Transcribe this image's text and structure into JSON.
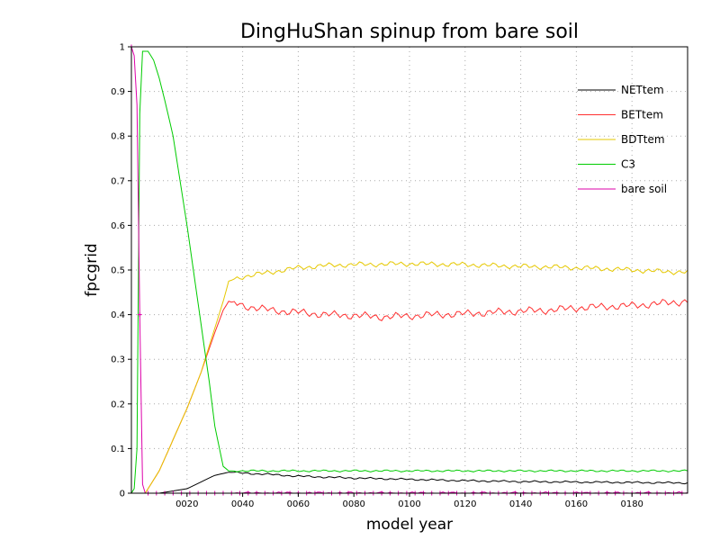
{
  "chart_data": {
    "type": "line",
    "title": "DingHuShan spinup from bare soil",
    "xlabel": "model year",
    "ylabel": "fpcgrid",
    "xlim": [
      0,
      200
    ],
    "ylim": [
      0,
      1
    ],
    "grid": true,
    "legend_position": "top-right",
    "x_ticks": [
      20,
      40,
      60,
      80,
      100,
      120,
      140,
      160,
      180
    ],
    "x_tick_labels": [
      "0020",
      "0040",
      "0060",
      "0080",
      "0100",
      "0120",
      "0140",
      "0160",
      "0180"
    ],
    "y_ticks": [
      0,
      0.1,
      0.2,
      0.3,
      0.4,
      0.5,
      0.6,
      0.7,
      0.8,
      0.9,
      1
    ],
    "y_tick_labels": [
      "0",
      "0.1",
      "0.2",
      "0.3",
      "0.4",
      "0.5",
      "0.6",
      "0.7",
      "0.8",
      "0.9",
      "1"
    ],
    "series": [
      {
        "name": "NETtem",
        "color": "#000000",
        "x": [
          0,
          10,
          15,
          20,
          25,
          30,
          35,
          40,
          50,
          60,
          80,
          100,
          120,
          140,
          160,
          180,
          200
        ],
        "values": [
          0,
          0,
          0.005,
          0.01,
          0.025,
          0.04,
          0.047,
          0.045,
          0.042,
          0.038,
          0.034,
          0.031,
          0.028,
          0.026,
          0.025,
          0.024,
          0.023
        ]
      },
      {
        "name": "BETtem",
        "color": "#ff3030",
        "x": [
          0,
          5,
          10,
          15,
          20,
          25,
          30,
          33,
          35,
          40,
          45,
          50,
          60,
          70,
          80,
          90,
          100,
          110,
          120,
          130,
          140,
          150,
          160,
          170,
          180,
          190,
          200
        ],
        "values": [
          0,
          0,
          0.05,
          0.12,
          0.19,
          0.27,
          0.36,
          0.41,
          0.43,
          0.42,
          0.415,
          0.41,
          0.405,
          0.4,
          0.398,
          0.395,
          0.397,
          0.4,
          0.402,
          0.405,
          0.408,
          0.41,
          0.415,
          0.418,
          0.42,
          0.425,
          0.43
        ]
      },
      {
        "name": "BDTtem",
        "color": "#e6c800",
        "x": [
          0,
          5,
          10,
          15,
          20,
          25,
          30,
          33,
          35,
          40,
          45,
          50,
          60,
          70,
          80,
          90,
          100,
          110,
          120,
          130,
          140,
          150,
          160,
          170,
          180,
          190,
          200
        ],
        "values": [
          0,
          0,
          0.05,
          0.12,
          0.19,
          0.27,
          0.37,
          0.43,
          0.475,
          0.485,
          0.49,
          0.495,
          0.505,
          0.51,
          0.512,
          0.513,
          0.514,
          0.513,
          0.512,
          0.51,
          0.508,
          0.507,
          0.505,
          0.503,
          0.5,
          0.497,
          0.495
        ]
      },
      {
        "name": "C3",
        "color": "#00cc00",
        "x": [
          0,
          1,
          2,
          3,
          4,
          6,
          8,
          10,
          12,
          15,
          20,
          25,
          28,
          30,
          33,
          35,
          40,
          50,
          100,
          150,
          200
        ],
        "values": [
          0,
          0.01,
          0.1,
          0.85,
          0.99,
          0.99,
          0.97,
          0.93,
          0.88,
          0.8,
          0.6,
          0.38,
          0.25,
          0.15,
          0.06,
          0.05,
          0.05,
          0.05,
          0.05,
          0.05,
          0.05
        ]
      },
      {
        "name": "bare soil",
        "color": "#dd00aa",
        "x": [
          0,
          1,
          2,
          3,
          4,
          5,
          6,
          10,
          50,
          100,
          150,
          200
        ],
        "values": [
          1,
          0.98,
          0.87,
          0.4,
          0.02,
          0,
          0,
          0,
          0,
          0,
          0,
          0
        ]
      }
    ]
  }
}
